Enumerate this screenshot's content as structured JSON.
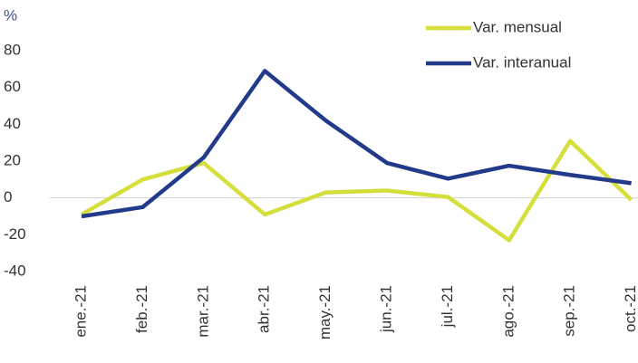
{
  "chart_data": {
    "type": "line",
    "y_unit_label": "%",
    "categories": [
      "ene.-21",
      "feb.-21",
      "mar.-21",
      "abr.-21",
      "may.-21",
      "jun.-21",
      "jul.-21",
      "ago.-21",
      "sep.-21",
      "oct.-21"
    ],
    "series": [
      {
        "name": "Var. mensual",
        "color": "#d4df3c",
        "values": [
          -9,
          10,
          19,
          -9,
          3,
          4,
          0.5,
          -23,
          31,
          -1
        ]
      },
      {
        "name": "Var. interanual",
        "color": "#233a8b",
        "values": [
          -10,
          -5,
          22,
          69,
          42,
          19,
          10.5,
          17.5,
          12.5,
          8
        ]
      }
    ],
    "ylim": [
      -40,
      80
    ],
    "yticks": [
      80,
      60,
      40,
      20,
      0,
      -20,
      -40
    ],
    "zero_line": true,
    "legend": "top-right"
  }
}
